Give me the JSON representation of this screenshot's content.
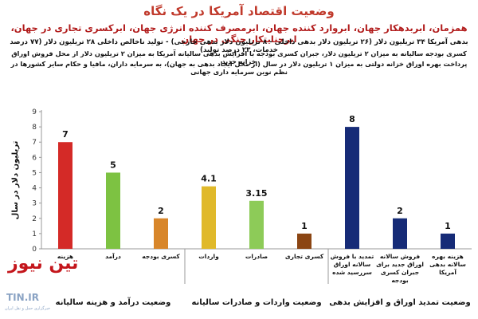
{
  "header": {
    "title": "وضعیت اقتصاد آمریکا در یک نگاه",
    "line1": "همزمان، ابربدهکار جهان، ابروارد کننده جهان، ابرمصرف کننده انرژی جهان، ابرکسری تجاری در جهان، ابرجنایتکار جنگی در جهان",
    "line2": "بدهی آمریکا ۳۴ تریلیون دلار (۲۶ تریلیون دلار بدهی داخلی - ۸ تریلیون دلار بدهی خارجی) - تولید ناخالص داخلی ۲۸ تریلیون دلار (۷۷ درصد خدمات، ۲۳ درصد تولید)",
    "line3": "کسری بودجه سالیانه به میزان ۲ تریلیون دلار، جبران کسری بودجه با افزایش بدهی سالیانه آمریکا به میزان ۲ تریلیون دلار از محل فروش اوراق خزانه جدید",
    "line4": "پرداخت بهره اوراق خزانه دولتی به میزان ۱ تریلیون دلار در سال (از محل ایجاد بدهی به جهان)، به سرمایه داران، مافیا و حکام سایر کشورها در نظم نوین سرمایه داری جهانی"
  },
  "branding": {
    "logo": "تین نیوز",
    "watermark": "TIN.IR",
    "small": "خبرگزاری حمل و نقل ایران"
  },
  "colors": {
    "red": "#d42a27",
    "green": "#7dc242",
    "orange": "#d8862a",
    "gold": "#e0b92a",
    "lightgreen": "#8dcb58",
    "brown": "#8b4513",
    "navy": "#162b77"
  },
  "chart_data": {
    "type": "bar",
    "ylabel": "تریلیون دلار در سال",
    "ylim": [
      0,
      9
    ],
    "yticks": [
      0,
      1,
      2,
      3,
      4,
      5,
      6,
      7,
      8,
      9
    ],
    "grid": false,
    "bars": [
      {
        "label": "هزینه",
        "value": 7,
        "value_label": "7",
        "color": "#d42a27"
      },
      {
        "label": "درآمد",
        "value": 5,
        "value_label": "5",
        "color": "#7dc242"
      },
      {
        "label": "کسری بودجه",
        "value": 2,
        "value_label": "2",
        "color": "#d8862a"
      },
      {
        "label": "واردات",
        "value": 4.1,
        "value_label": "4.1",
        "color": "#e0b92a"
      },
      {
        "label": "صادرات",
        "value": 3.15,
        "value_label": "3.15",
        "color": "#8dcb58"
      },
      {
        "label": "کسری تجاری",
        "value": 1,
        "value_label": "1",
        "color": "#8b4513"
      },
      {
        "label": "تمدید با فروش سالانه اوراق سررسید شده",
        "value": 8,
        "value_label": "8",
        "color": "#162b77"
      },
      {
        "label": "فروش سالانه اوراق جدید برای جبران کسری بودجه",
        "value": 2,
        "value_label": "2",
        "color": "#162b77"
      },
      {
        "label": "هزینه بهره سالانه بدهی آمریکا",
        "value": 1,
        "value_label": "1",
        "color": "#162b77"
      }
    ],
    "groups": [
      {
        "label": "وضعیت درآمد و هزینه سالیانه",
        "bars": [
          0,
          1,
          2
        ]
      },
      {
        "label": "وضعیت واردات و صادرات سالیانه",
        "bars": [
          3,
          4,
          5
        ]
      },
      {
        "label": "وضعیت تمدید اوراق و افزایش بدهی",
        "bars": [
          6,
          7,
          8
        ]
      }
    ]
  }
}
